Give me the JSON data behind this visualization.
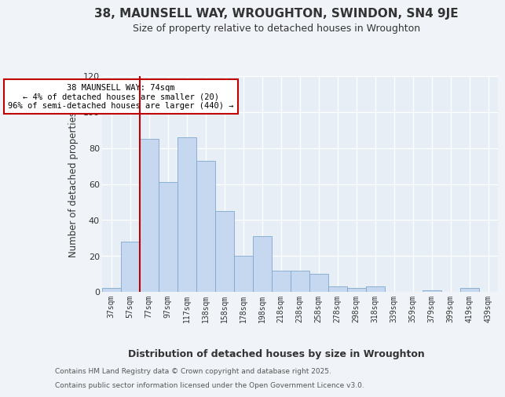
{
  "title": "38, MAUNSELL WAY, WROUGHTON, SWINDON, SN4 9JE",
  "subtitle": "Size of property relative to detached houses in Wroughton",
  "xlabel": "Distribution of detached houses by size in Wroughton",
  "ylabel": "Number of detached properties",
  "categories": [
    "37sqm",
    "57sqm",
    "77sqm",
    "97sqm",
    "117sqm",
    "138sqm",
    "158sqm",
    "178sqm",
    "198sqm",
    "218sqm",
    "238sqm",
    "258sqm",
    "278sqm",
    "298sqm",
    "318sqm",
    "339sqm",
    "359sqm",
    "379sqm",
    "399sqm",
    "419sqm",
    "439sqm"
  ],
  "values": [
    2,
    28,
    85,
    61,
    86,
    73,
    45,
    20,
    31,
    12,
    12,
    10,
    3,
    2,
    3,
    0,
    0,
    1,
    0,
    2,
    0
  ],
  "bar_color": "#c5d8f0",
  "bar_edge_color": "#7fa8d0",
  "highlight_color": "#c00000",
  "property_line_xcat": "77sqm",
  "annotation_title": "38 MAUNSELL WAY: 74sqm",
  "annotation_line1": "← 4% of detached houses are smaller (20)",
  "annotation_line2": "96% of semi-detached houses are larger (440) →",
  "annotation_box_color": "#c00000",
  "ylim": [
    0,
    120
  ],
  "yticks": [
    0,
    20,
    40,
    60,
    80,
    100,
    120
  ],
  "footer_line1": "Contains HM Land Registry data © Crown copyright and database right 2025.",
  "footer_line2": "Contains public sector information licensed under the Open Government Licence v3.0.",
  "bg_color": "#f0f4f8",
  "plot_bg_color": "#e8eef6"
}
